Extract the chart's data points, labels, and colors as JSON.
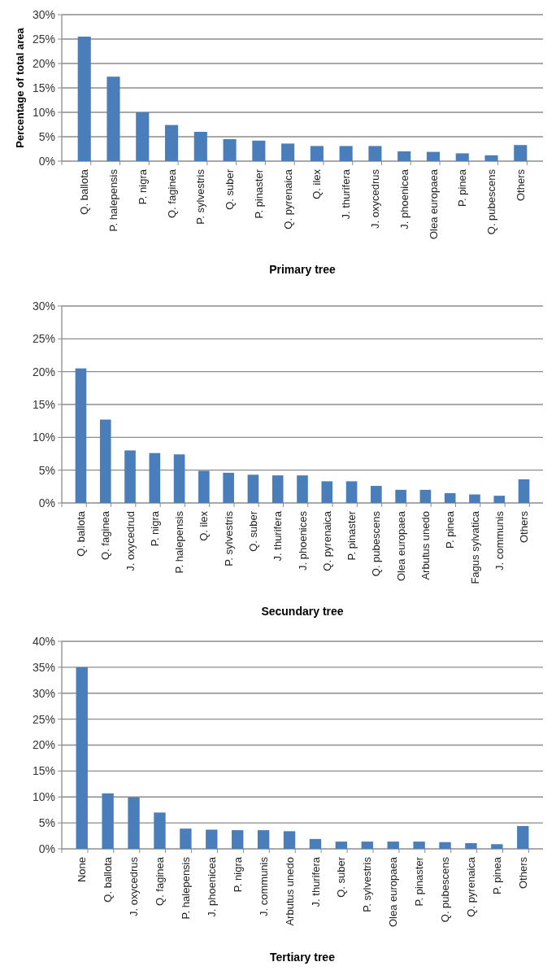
{
  "chart_data": [
    {
      "type": "bar",
      "xlabel": "Primary tree",
      "ylabel": "Percentage of total area",
      "categories": [
        "Q. ballota",
        "P. halepensis",
        "P. nigra",
        "Q. faginea",
        "P. sylvestris",
        "Q. suber",
        "P. pinaster",
        "Q. pyrenaica",
        "Q. ilex",
        "J. thurifera",
        "J. oxycedrus",
        "J. phoenicea",
        "Olea europaea",
        "P. pinea",
        "Q. pubescens",
        "Others"
      ],
      "values": [
        25.5,
        17.3,
        10.0,
        7.4,
        6.0,
        4.5,
        4.2,
        3.6,
        3.1,
        3.1,
        3.1,
        2.0,
        1.9,
        1.6,
        1.2,
        3.3
      ],
      "color": "#4a7ebb",
      "ylim": [
        0,
        30
      ],
      "yticks": [
        {
          "value": 0,
          "label": "0%"
        },
        {
          "value": 5,
          "label": "5%"
        },
        {
          "value": 10,
          "label": "10%"
        },
        {
          "value": 15,
          "label": "15%"
        },
        {
          "value": 20,
          "label": "20%"
        },
        {
          "value": 25,
          "label": "25%"
        },
        {
          "value": 30,
          "label": "30%"
        }
      ],
      "grid": "y"
    },
    {
      "type": "bar",
      "xlabel": "Secundary tree",
      "categories": [
        "Q. ballota",
        "Q. faginea",
        "J. oxycedrud",
        "P. nigra",
        "P. halepensis",
        "Q. ilex",
        "P. sylvestris",
        "Q. suber",
        "J. thurifera",
        "J. phoenices",
        "Q. pyrenaica",
        "P. pinaster",
        "Q. pubescens",
        "Olea europaea",
        "Arbutus unedo",
        "P. pinea",
        "Fagus sylvatica",
        "J. communis",
        "Others"
      ],
      "values": [
        20.5,
        12.7,
        8.0,
        7.6,
        7.4,
        4.9,
        4.6,
        4.3,
        4.2,
        4.2,
        3.3,
        3.3,
        2.6,
        2.0,
        2.0,
        1.5,
        1.3,
        1.1,
        3.6
      ],
      "color": "#4a7ebb",
      "ylim": [
        0,
        30
      ],
      "yticks": [
        {
          "value": 0,
          "label": "0%"
        },
        {
          "value": 5,
          "label": "5%"
        },
        {
          "value": 10,
          "label": "10%"
        },
        {
          "value": 15,
          "label": "15%"
        },
        {
          "value": 20,
          "label": "20%"
        },
        {
          "value": 25,
          "label": "25%"
        },
        {
          "value": 30,
          "label": "30%"
        }
      ],
      "grid": "y"
    },
    {
      "type": "bar",
      "xlabel": "Tertiary tree",
      "categories": [
        "None",
        "Q. ballota",
        "J. oxycedrus",
        "Q. faginea",
        "P. halepensis",
        "J. phoenicea",
        "P. nigra",
        "J. communis",
        "Arbutus unedo",
        "J. thurifera",
        "Q. suber",
        "P. sylvestris",
        "Olea europaea",
        "P. pinaster",
        "Q. pubescens",
        "Q. pyrenaica",
        "P. pinea",
        "Others"
      ],
      "values": [
        35.0,
        10.7,
        9.9,
        7.0,
        3.9,
        3.7,
        3.6,
        3.6,
        3.4,
        1.9,
        1.4,
        1.4,
        1.4,
        1.4,
        1.3,
        1.1,
        0.9,
        4.4
      ],
      "color": "#4a7ebb",
      "ylim": [
        0,
        40
      ],
      "yticks": [
        {
          "value": 0,
          "label": "0%"
        },
        {
          "value": 5,
          "label": "5%"
        },
        {
          "value": 10,
          "label": "10%"
        },
        {
          "value": 15,
          "label": "15%"
        },
        {
          "value": 20,
          "label": "20%"
        },
        {
          "value": 25,
          "label": "25%"
        },
        {
          "value": 30,
          "label": "30%"
        },
        {
          "value": 35,
          "label": "35%"
        },
        {
          "value": 40,
          "label": "40%"
        }
      ],
      "grid": "y"
    }
  ]
}
